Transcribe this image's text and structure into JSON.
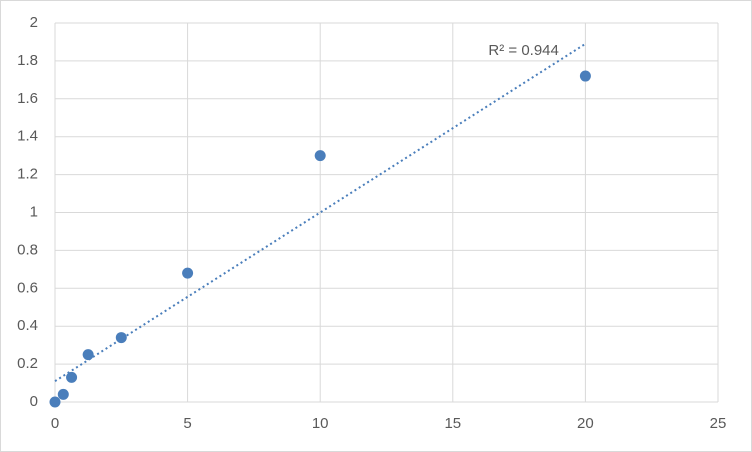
{
  "chart_data": {
    "type": "scatter",
    "series": [
      {
        "color": "#4a7ebb",
        "x": [
          0,
          0.3125,
          0.625,
          1.25,
          2.5,
          5,
          10,
          20
        ],
        "values": [
          0,
          0.04,
          0.13,
          0.25,
          0.34,
          0.68,
          1.3,
          1.72
        ]
      }
    ],
    "trendline": {
      "x": [
        0,
        20
      ],
      "values": [
        0.11,
        1.89
      ],
      "color": "#4a7ebb",
      "label": "R² = 0.944"
    },
    "xlim": [
      0,
      25
    ],
    "xticks": [
      0,
      5,
      10,
      15,
      20,
      25
    ],
    "ylim": [
      0,
      2
    ],
    "yticks": [
      0,
      0.2,
      0.4,
      0.6,
      0.8,
      1,
      1.2,
      1.4,
      1.6,
      1.8,
      2
    ],
    "grid": true
  }
}
